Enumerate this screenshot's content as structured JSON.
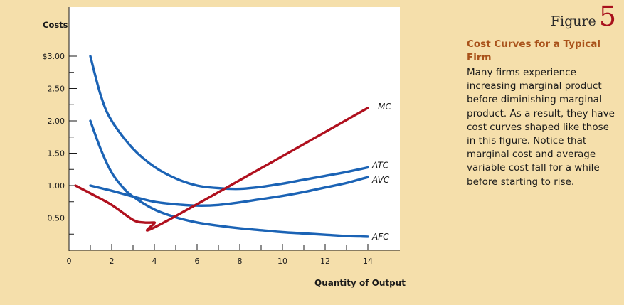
{
  "figure": {
    "word": "Figure",
    "number": "5",
    "caption_title": "Cost Curves for a Typical Firm",
    "caption_body": "Many firms experience increasing marginal product before diminishing marginal product. As a result, they have cost curves shaped like those in this figure. Notice that marginal cost and average variable cost fall for a while before starting to rise."
  },
  "chart_data": {
    "type": "line",
    "title": "",
    "xlabel": "Quantity of Output",
    "ylabel": "Costs",
    "xlim": [
      0,
      15
    ],
    "ylim": [
      0,
      3.5
    ],
    "x_ticks": [
      0,
      2,
      4,
      6,
      8,
      10,
      12,
      14
    ],
    "x_tick_labels": [
      "0",
      "2",
      "4",
      "6",
      "8",
      "10",
      "12",
      "14"
    ],
    "y_ticks": [
      0.5,
      1.0,
      1.5,
      2.0,
      2.5,
      3.0
    ],
    "y_tick_labels": [
      "0.50",
      "1.00",
      "1.50",
      "2.00",
      "2.50",
      "$3.00"
    ],
    "grid": false,
    "series": [
      {
        "name": "ATC",
        "color": "#1b63b5",
        "points": [
          [
            1,
            3.0
          ],
          [
            1.5,
            2.38
          ],
          [
            2,
            2.0
          ],
          [
            3,
            1.57
          ],
          [
            4,
            1.29
          ],
          [
            5,
            1.11
          ],
          [
            6,
            1.0
          ],
          [
            7,
            0.96
          ],
          [
            8,
            0.95
          ],
          [
            9,
            0.98
          ],
          [
            10,
            1.03
          ],
          [
            11,
            1.09
          ],
          [
            12,
            1.15
          ],
          [
            13,
            1.21
          ],
          [
            14,
            1.28
          ]
        ]
      },
      {
        "name": "AVC",
        "color": "#1b63b5",
        "points": [
          [
            1,
            1.0
          ],
          [
            2,
            0.92
          ],
          [
            3,
            0.83
          ],
          [
            4,
            0.75
          ],
          [
            5,
            0.71
          ],
          [
            6,
            0.69
          ],
          [
            7,
            0.7
          ],
          [
            8,
            0.74
          ],
          [
            9,
            0.79
          ],
          [
            10,
            0.84
          ],
          [
            11,
            0.9
          ],
          [
            12,
            0.97
          ],
          [
            13,
            1.04
          ],
          [
            14,
            1.13
          ]
        ]
      },
      {
        "name": "AFC",
        "color": "#1b63b5",
        "points": [
          [
            1,
            2.0
          ],
          [
            1.5,
            1.55
          ],
          [
            2,
            1.2
          ],
          [
            2.5,
            0.98
          ],
          [
            3,
            0.83
          ],
          [
            4,
            0.63
          ],
          [
            5,
            0.51
          ],
          [
            6,
            0.43
          ],
          [
            7,
            0.38
          ],
          [
            8,
            0.34
          ],
          [
            9,
            0.31
          ],
          [
            10,
            0.28
          ],
          [
            11,
            0.26
          ],
          [
            12,
            0.24
          ],
          [
            13,
            0.22
          ],
          [
            14,
            0.21
          ]
        ]
      },
      {
        "name": "MC",
        "color": "#b0101e",
        "points": [
          [
            0.3,
            1.0
          ],
          [
            1,
            0.88
          ],
          [
            2,
            0.7
          ],
          [
            3,
            0.47
          ],
          [
            3.5,
            0.43
          ],
          [
            4,
            0.43
          ],
          [
            4.5,
            0.44
          ],
          [
            14,
            2.2
          ]
        ]
      }
    ]
  },
  "colors": {
    "background": "#f5dfab",
    "plot_area": "#ffffff",
    "curve_blue": "#1b63b5",
    "curve_red": "#b0101e",
    "figure_number": "#a8101c",
    "caption_title": "#a9521a"
  }
}
